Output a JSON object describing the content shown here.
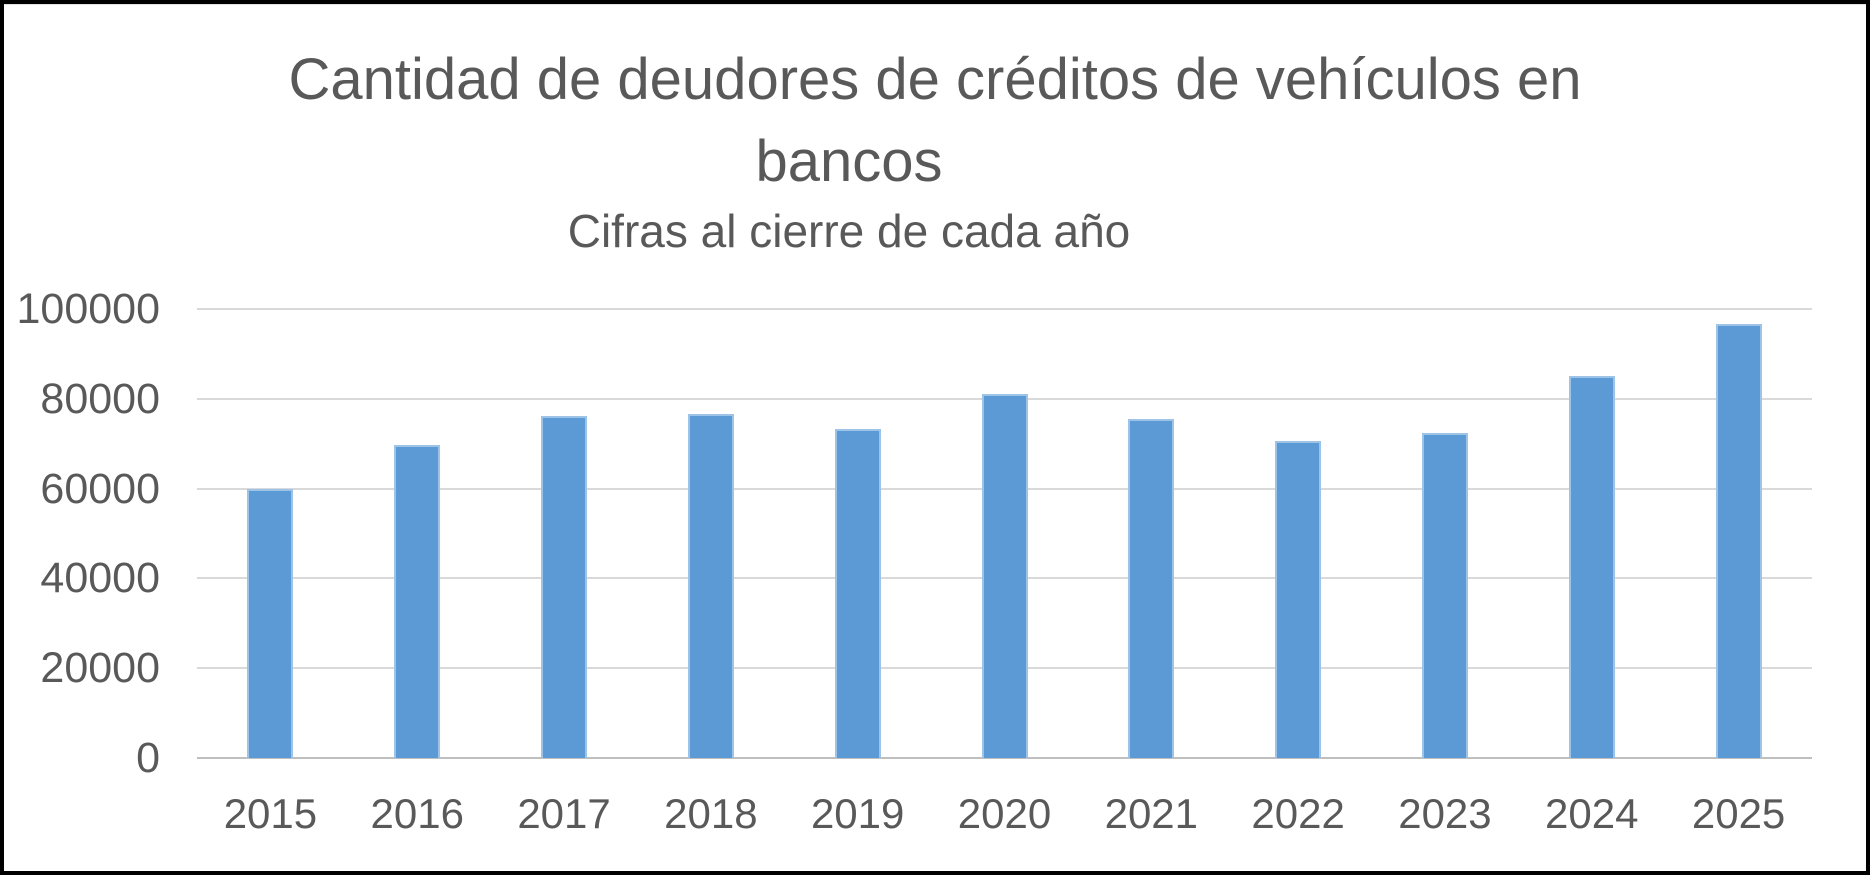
{
  "frame": {
    "border_color": "#000000",
    "background": "#ffffff"
  },
  "chart_data": {
    "type": "bar",
    "title": "Cantidad de deudores de créditos de vehículos en bancos",
    "title_lines": [
      "Cantidad de deudores de créditos de vehículos en",
      "bancos"
    ],
    "subtitle": "Cifras al cierre de cada año",
    "categories": [
      "2015",
      "2016",
      "2017",
      "2018",
      "2019",
      "2020",
      "2021",
      "2022",
      "2023",
      "2024",
      "2025"
    ],
    "values": [
      60000,
      69700,
      76200,
      76600,
      73300,
      81000,
      75500,
      70600,
      72400,
      85000,
      96700
    ],
    "xlabel": "",
    "ylabel": "",
    "ylim": [
      0,
      100000
    ],
    "ytick_interval": 20000,
    "ytick_labels": [
      "0",
      "20000",
      "40000",
      "60000",
      "80000",
      "100000"
    ],
    "grid": true,
    "legend": "none",
    "bar_color": "#5b9ad5",
    "bar_edge_color": "#9dc3e6",
    "gridline_color": "#d9d9d9",
    "axis_line_color": "#bfbfbf",
    "text_color": "#595959"
  }
}
